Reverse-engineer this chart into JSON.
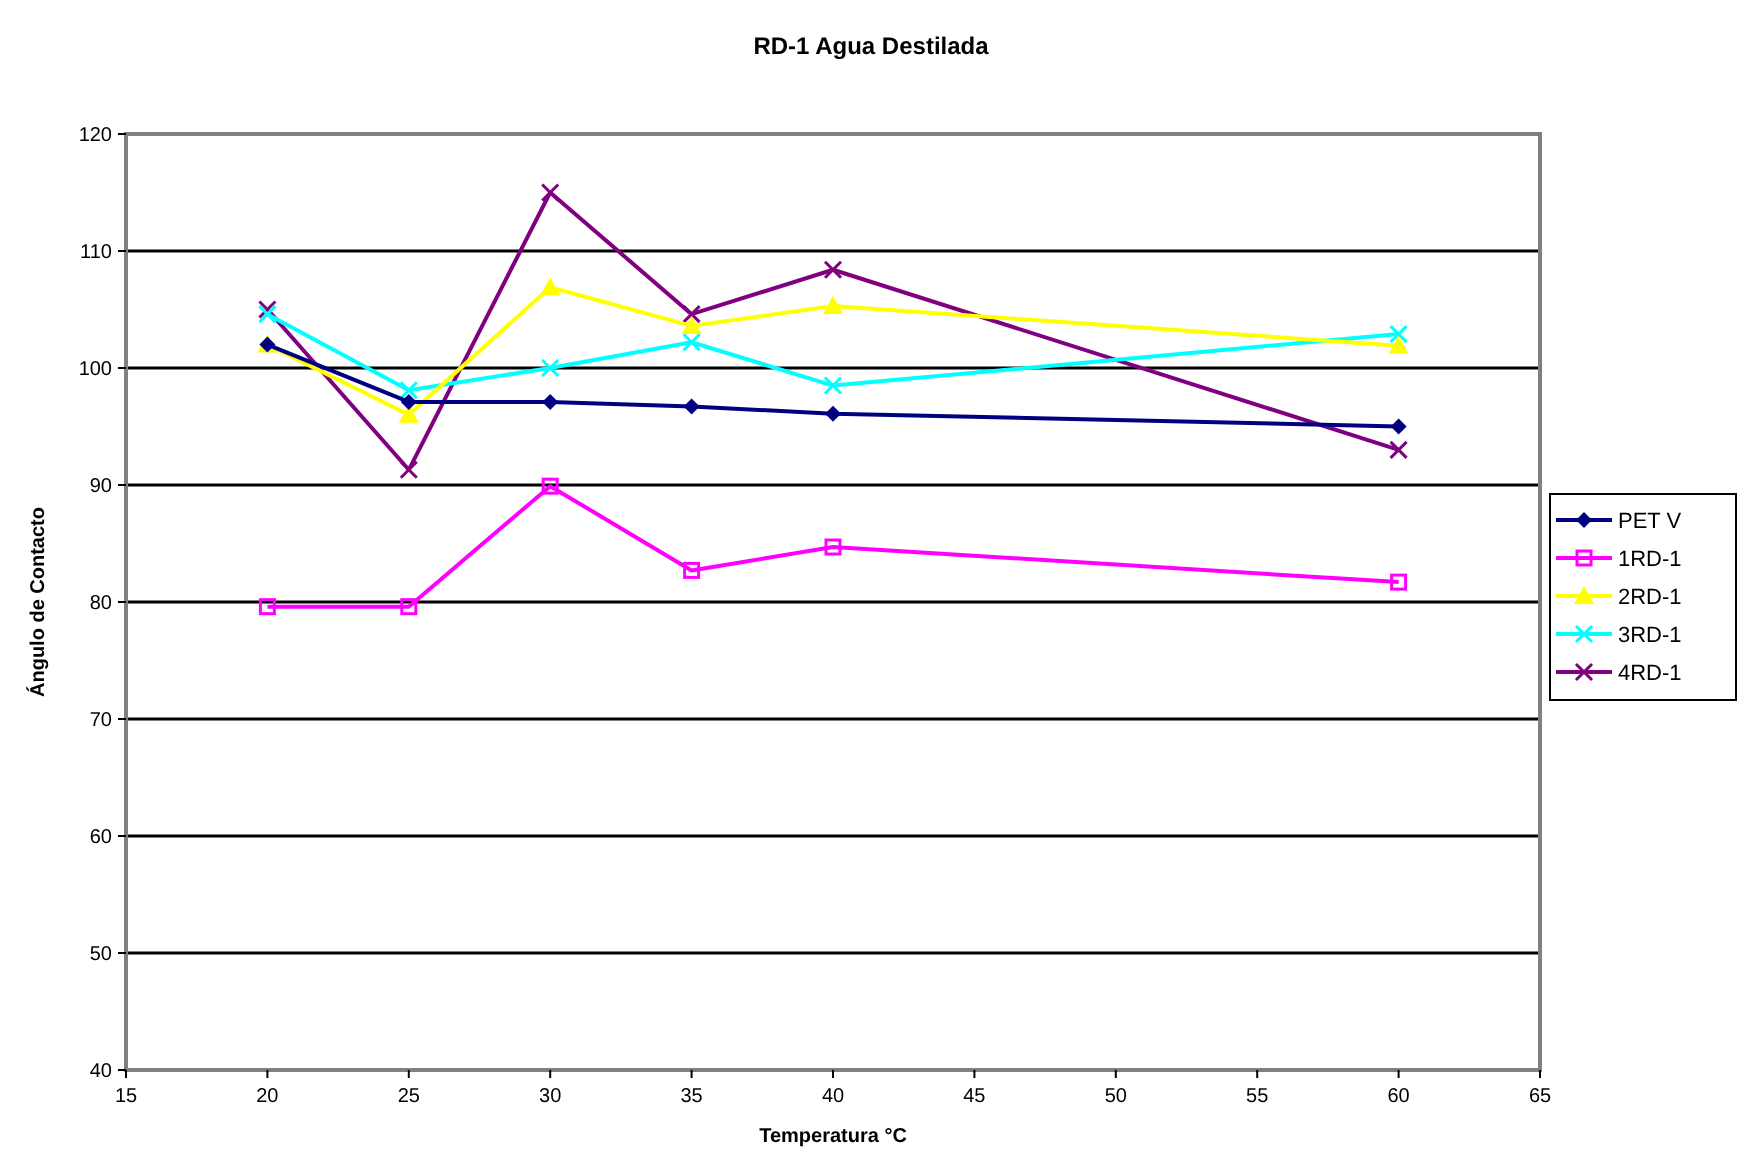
{
  "chart_data": {
    "type": "line",
    "title": "RD-1 Agua Destilada",
    "xlabel": "Temperatura °C",
    "ylabel": "Ángulo de Contacto",
    "xlim": [
      15,
      65
    ],
    "xticks": [
      15,
      20,
      25,
      30,
      35,
      40,
      45,
      50,
      55,
      60,
      65
    ],
    "ylim": [
      40,
      120
    ],
    "yticks": [
      40,
      50,
      60,
      70,
      80,
      90,
      100,
      110,
      120
    ],
    "grid": "y",
    "legend": "right",
    "x": [
      20,
      25,
      30,
      35,
      40,
      60
    ],
    "series": [
      {
        "name": "PET V",
        "color": "#000080",
        "marker": "diamond",
        "values": [
          102,
          97.1,
          97.1,
          96.7,
          96.1,
          95
        ]
      },
      {
        "name": "1RD-1",
        "color": "#ff00ff",
        "marker": "square",
        "values": [
          79.6,
          79.6,
          89.9,
          82.7,
          84.7,
          81.7
        ]
      },
      {
        "name": "2RD-1",
        "color": "#ffff00",
        "marker": "triangle",
        "values": [
          102,
          96,
          106.9,
          103.6,
          105.3,
          101.9
        ]
      },
      {
        "name": "3RD-1",
        "color": "#00ffff",
        "marker": "cross",
        "values": [
          104.6,
          98.1,
          100,
          102.2,
          98.5,
          102.9
        ]
      },
      {
        "name": "4RD-1",
        "color": "#800080",
        "marker": "cross",
        "values": [
          105,
          91.3,
          115,
          104.6,
          108.4,
          93
        ]
      }
    ]
  }
}
